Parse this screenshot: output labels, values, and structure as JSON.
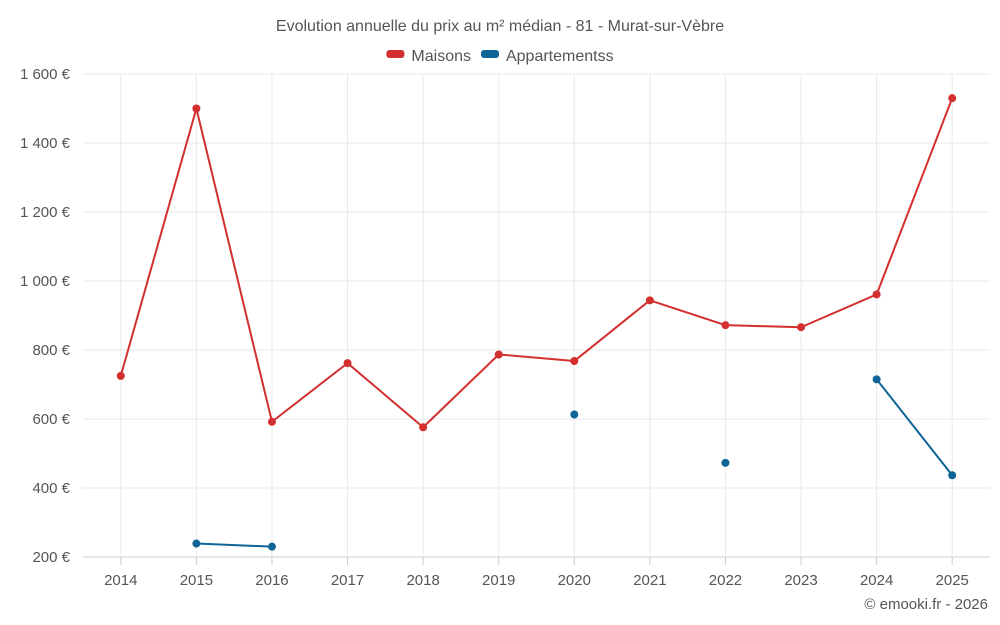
{
  "chart_data": {
    "type": "line",
    "title": "Evolution annuelle du prix au m² médian - 81 - Murat-sur-Vèbre",
    "categories": [
      "2014",
      "2015",
      "2016",
      "2017",
      "2018",
      "2019",
      "2020",
      "2021",
      "2022",
      "2023",
      "2024",
      "2025"
    ],
    "series": [
      {
        "name": "Maisons",
        "color": "#d32f2f",
        "values": [
          725,
          1500,
          592,
          762,
          576,
          787,
          768,
          944,
          872,
          866,
          961,
          1530
        ]
      },
      {
        "name": "Appartementss",
        "color": "#0f6496",
        "values": [
          null,
          239,
          230,
          null,
          null,
          null,
          613,
          null,
          473,
          null,
          715,
          437
        ]
      }
    ],
    "ylim": [
      200,
      1600
    ],
    "yticks": [
      200,
      400,
      600,
      800,
      1000,
      1200,
      1400,
      1600
    ],
    "ytick_labels": [
      "200 €",
      "400 €",
      "600 €",
      "800 €",
      "1 000 €",
      "1 200 €",
      "1 400 €",
      "1 600 €"
    ],
    "xlabel": "",
    "ylabel": "",
    "grid": true,
    "legend": "top-center"
  },
  "credit": "© emooki.fr - 2026"
}
